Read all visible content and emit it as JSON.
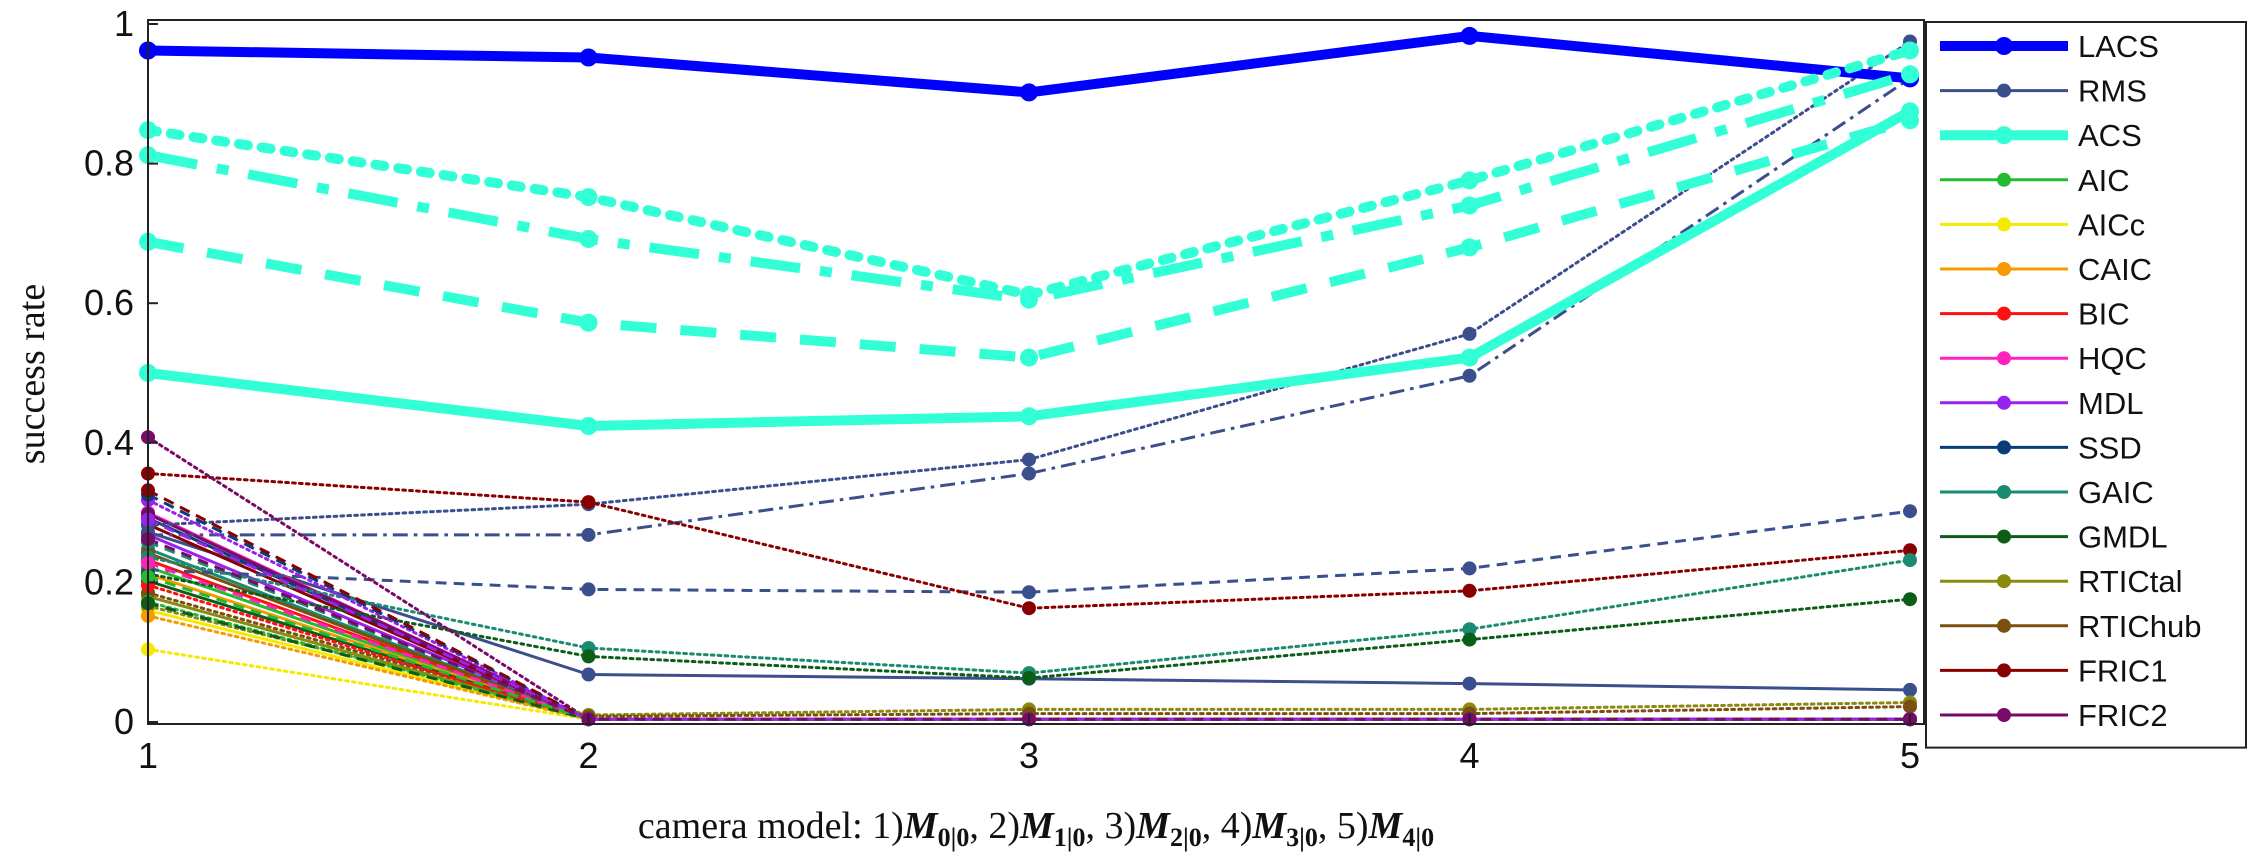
{
  "chart_data": {
    "type": "line",
    "x": [
      1,
      2,
      3,
      4,
      5
    ],
    "xticks": [
      "1",
      "2",
      "3",
      "4",
      "5"
    ],
    "yticks": [
      "0",
      "0.2",
      "0.4",
      "0.6",
      "0.8",
      "1"
    ],
    "ylim": [
      0,
      1
    ],
    "xlim": [
      1,
      5.07
    ],
    "ylabel": "success rate",
    "xlabel": {
      "prefix": "camera model: 1)",
      "parts": [
        {
          "sub": "0|0",
          "sep": ", 2)"
        },
        {
          "sub": "1|0",
          "sep": ", 3)"
        },
        {
          "sub": "2|0",
          "sep": ", 4)"
        },
        {
          "sub": "3|0",
          "sep": ", 5)"
        },
        {
          "sub": "4|0",
          "sep": ""
        }
      ],
      "symbol": "M"
    },
    "legend_position": "outside-right",
    "grid": false,
    "series": [
      {
        "name": "LACS",
        "color": "#0000ff",
        "width": 10,
        "dash": "solid",
        "marker": 9,
        "values": [
          0.962,
          0.952,
          0.902,
          0.983,
          0.922
        ]
      },
      {
        "name": "RMS",
        "color": "#3a4f8c",
        "width": 3,
        "dash": "solid",
        "marker": 7,
        "values": [
          0.272,
          0.068,
          0.062,
          0.055,
          0.046
        ]
      },
      {
        "name": "ACS",
        "color": "#33ffd6",
        "width": 10,
        "dash": "solid",
        "marker": 9,
        "values": [
          0.5,
          0.424,
          0.438,
          0.522,
          0.875
        ]
      },
      {
        "name": "AIC",
        "color": "#22bb33",
        "width": 3,
        "dash": "solid",
        "marker": 7,
        "values": [
          0.222,
          0.004,
          0.004,
          0.004,
          0.004
        ]
      },
      {
        "name": "AICc",
        "color": "#f5e900",
        "width": 3,
        "dash": "solid",
        "marker": 7,
        "values": [
          0.16,
          0.004,
          0.004,
          0.004,
          0.004
        ]
      },
      {
        "name": "CAIC",
        "color": "#f59b00",
        "width": 3,
        "dash": "solid",
        "marker": 7,
        "values": [
          0.212,
          0.004,
          0.004,
          0.004,
          0.004
        ]
      },
      {
        "name": "BIC",
        "color": "#ff1111",
        "width": 3,
        "dash": "solid",
        "marker": 7,
        "values": [
          0.232,
          0.004,
          0.004,
          0.004,
          0.004
        ]
      },
      {
        "name": "HQC",
        "color": "#ff22bb",
        "width": 3,
        "dash": "solid",
        "marker": 7,
        "values": [
          0.3,
          0.004,
          0.004,
          0.004,
          0.004
        ]
      },
      {
        "name": "MDL",
        "color": "#9922ee",
        "width": 3,
        "dash": "solid",
        "marker": 7,
        "values": [
          0.268,
          0.004,
          0.004,
          0.004,
          0.004
        ]
      },
      {
        "name": "SSD",
        "color": "#0b3c7a",
        "width": 3,
        "dash": "solid",
        "marker": 7,
        "values": [
          0.292,
          0.004,
          0.004,
          0.004,
          0.004
        ]
      },
      {
        "name": "GAIC",
        "color": "#1a8a70",
        "width": 3,
        "dash": "solid",
        "marker": 7,
        "values": [
          0.248,
          0.004,
          0.004,
          0.004,
          0.004
        ]
      },
      {
        "name": "GMDL",
        "color": "#0b5d18",
        "width": 3,
        "dash": "solid",
        "marker": 7,
        "values": [
          0.202,
          0.004,
          0.004,
          0.004,
          0.004
        ]
      },
      {
        "name": "RTICtal",
        "color": "#8a8a10",
        "width": 3,
        "dash": "solid",
        "marker": 7,
        "values": [
          0.18,
          0.004,
          0.004,
          0.004,
          0.004
        ]
      },
      {
        "name": "RTIChub",
        "color": "#7a4f10",
        "width": 3,
        "dash": "solid",
        "marker": 7,
        "values": [
          0.242,
          0.004,
          0.004,
          0.004,
          0.004
        ]
      },
      {
        "name": "FRIC1",
        "color": "#8a0000",
        "width": 3,
        "dash": "solid",
        "marker": 7,
        "values": [
          0.283,
          0.004,
          0.004,
          0.004,
          0.004
        ]
      },
      {
        "name": "FRIC2",
        "color": "#7a0a6a",
        "width": 3,
        "dash": "solid",
        "marker": 7,
        "values": [
          0.298,
          0.004,
          0.004,
          0.004,
          0.004
        ]
      },
      {
        "color": "#33ffd6",
        "width": 10,
        "dash": "dashed",
        "marker": 9,
        "values": [
          0.688,
          0.572,
          0.522,
          0.68,
          0.862
        ]
      },
      {
        "color": "#33ffd6",
        "width": 10,
        "dash": "dashdot",
        "marker": 9,
        "values": [
          0.812,
          0.692,
          0.605,
          0.74,
          0.928
        ]
      },
      {
        "color": "#33ffd6",
        "width": 10,
        "dash": "dotted",
        "marker": 9,
        "values": [
          0.848,
          0.752,
          0.612,
          0.776,
          0.962
        ]
      },
      {
        "color": "#3a4f8c",
        "width": 3,
        "dash": "dashed",
        "marker": 7,
        "values": [
          0.218,
          0.19,
          0.186,
          0.22,
          0.302
        ]
      },
      {
        "color": "#3a4f8c",
        "width": 3,
        "dash": "dashdot",
        "marker": 7,
        "values": [
          0.268,
          0.268,
          0.356,
          0.496,
          0.922
        ]
      },
      {
        "color": "#3a4f8c",
        "width": 3,
        "dash": "dotted",
        "marker": 7,
        "values": [
          0.282,
          0.312,
          0.376,
          0.556,
          0.975
        ]
      },
      {
        "color": "#8a0000",
        "width": 3,
        "dash": "dotted",
        "marker": 7,
        "values": [
          0.356,
          0.315,
          0.163,
          0.188,
          0.246
        ]
      },
      {
        "color": "#1a8a70",
        "width": 3,
        "dash": "dotted",
        "marker": 7,
        "values": [
          0.236,
          0.106,
          0.07,
          0.133,
          0.232
        ]
      },
      {
        "color": "#0b5d18",
        "width": 3,
        "dash": "dotted",
        "marker": 7,
        "values": [
          0.212,
          0.094,
          0.063,
          0.118,
          0.176
        ]
      },
      {
        "color": "#7a0a6a",
        "width": 3,
        "dash": "dotted",
        "marker": 7,
        "values": [
          0.408,
          0.004,
          0.004,
          0.004,
          0.004
        ]
      },
      {
        "color": "#8a8a10",
        "width": 3,
        "dash": "dotted",
        "marker": 7,
        "values": [
          0.166,
          0.01,
          0.018,
          0.018,
          0.028
        ]
      },
      {
        "color": "#7a4f10",
        "width": 3,
        "dash": "dotted",
        "marker": 7,
        "values": [
          0.185,
          0.008,
          0.012,
          0.012,
          0.022
        ]
      },
      {
        "color": "#f5e900",
        "width": 3,
        "dash": "dotted",
        "marker": 7,
        "values": [
          0.104,
          0.004,
          0.004,
          0.004,
          0.004
        ]
      },
      {
        "color": "#22bb33",
        "width": 3,
        "dash": "dotted",
        "marker": 7,
        "values": [
          0.172,
          0.004,
          0.004,
          0.004,
          0.004
        ]
      },
      {
        "color": "#ff1111",
        "width": 3,
        "dash": "dotted",
        "marker": 7,
        "values": [
          0.196,
          0.004,
          0.004,
          0.004,
          0.004
        ]
      },
      {
        "color": "#9922ee",
        "width": 3,
        "dash": "dotted",
        "marker": 7,
        "values": [
          0.318,
          0.004,
          0.004,
          0.004,
          0.004
        ]
      },
      {
        "color": "#0b3c7a",
        "width": 3,
        "dash": "dashed",
        "marker": 7,
        "values": [
          0.326,
          0.004,
          0.004,
          0.004,
          0.004
        ]
      },
      {
        "color": "#8a0000",
        "width": 3,
        "dash": "dashed",
        "marker": 7,
        "values": [
          0.332,
          0.004,
          0.004,
          0.004,
          0.004
        ]
      },
      {
        "color": "#ff22bb",
        "width": 3,
        "dash": "dashed",
        "marker": 7,
        "values": [
          0.228,
          0.004,
          0.004,
          0.004,
          0.004
        ]
      },
      {
        "color": "#f59b00",
        "width": 3,
        "dash": "dotted",
        "marker": 7,
        "values": [
          0.152,
          0.004,
          0.004,
          0.004,
          0.004
        ]
      },
      {
        "color": "#1a8a70",
        "width": 3,
        "dash": "dashed",
        "marker": 7,
        "values": [
          0.258,
          0.004,
          0.004,
          0.004,
          0.004
        ]
      },
      {
        "color": "#0b5d18",
        "width": 3,
        "dash": "dashed",
        "marker": 7,
        "values": [
          0.17,
          0.004,
          0.004,
          0.004,
          0.004
        ]
      },
      {
        "color": "#22bb33",
        "width": 3,
        "dash": "dashed",
        "marker": 7,
        "values": [
          0.208,
          0.004,
          0.004,
          0.004,
          0.004
        ]
      },
      {
        "color": "#9922ee",
        "width": 3,
        "dash": "dashed",
        "marker": 7,
        "values": [
          0.29,
          0.004,
          0.004,
          0.004,
          0.004
        ]
      },
      {
        "color": "#7a0a6a",
        "width": 3,
        "dash": "dashed",
        "marker": 7,
        "values": [
          0.262,
          0.004,
          0.004,
          0.004,
          0.004
        ]
      }
    ]
  }
}
